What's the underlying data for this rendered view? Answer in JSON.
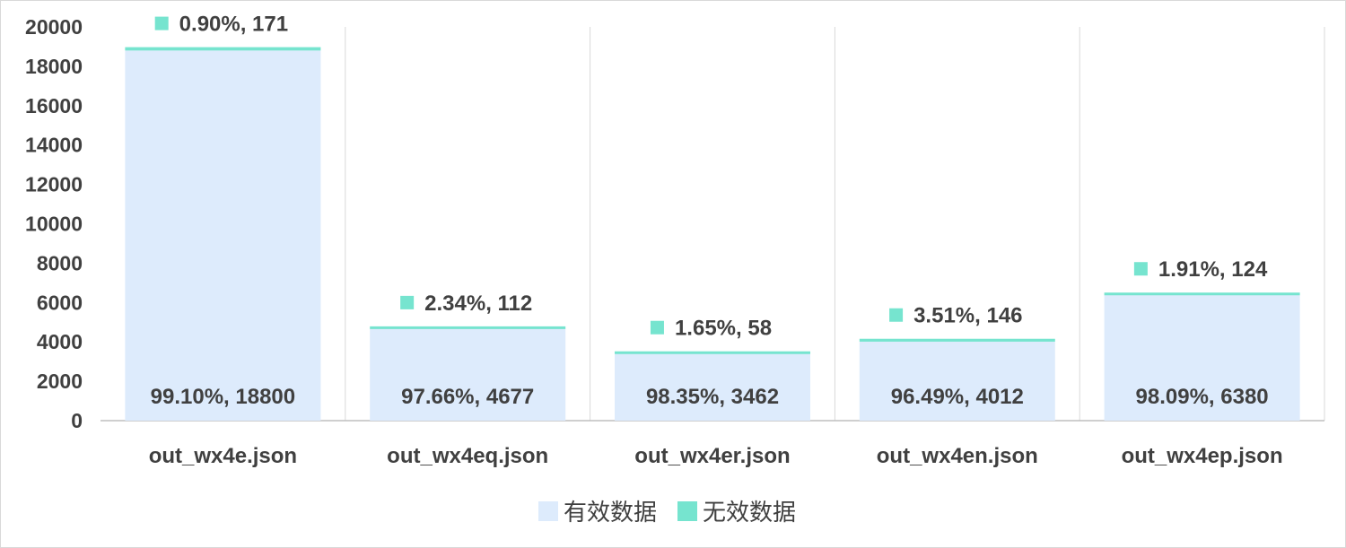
{
  "chart_data": {
    "type": "bar",
    "stacked": true,
    "categories": [
      "out_wx4e.json",
      "out_wx4eq.json",
      "out_wx4er.json",
      "out_wx4en.json",
      "out_wx4ep.json"
    ],
    "series": [
      {
        "name": "有效数据",
        "color": "#ddebfc",
        "values": [
          18800,
          4677,
          3462,
          4012,
          6380
        ],
        "percents": [
          "99.10%",
          "97.66%",
          "98.35%",
          "96.49%",
          "98.09%"
        ],
        "labels": [
          "99.10%, 18800",
          "97.66%, 4677",
          "98.35%, 3462",
          "96.49%, 4012",
          "98.09%, 6380"
        ]
      },
      {
        "name": "无效数据",
        "color": "#76e4cf",
        "values": [
          171,
          112,
          58,
          146,
          124
        ],
        "percents": [
          "0.90%",
          "2.34%",
          "1.65%",
          "3.51%",
          "1.91%"
        ],
        "labels": [
          "0.90%, 171",
          "2.34%, 112",
          "1.65%, 58",
          "3.51%, 146",
          "1.91%, 124"
        ]
      }
    ],
    "ylim": [
      0,
      20000
    ],
    "yticks": [
      0,
      2000,
      4000,
      6000,
      8000,
      10000,
      12000,
      14000,
      16000,
      18000,
      20000
    ],
    "title": "",
    "xlabel": "",
    "ylabel": "",
    "grid": "vertical separators between categories",
    "legend_position": "bottom"
  }
}
